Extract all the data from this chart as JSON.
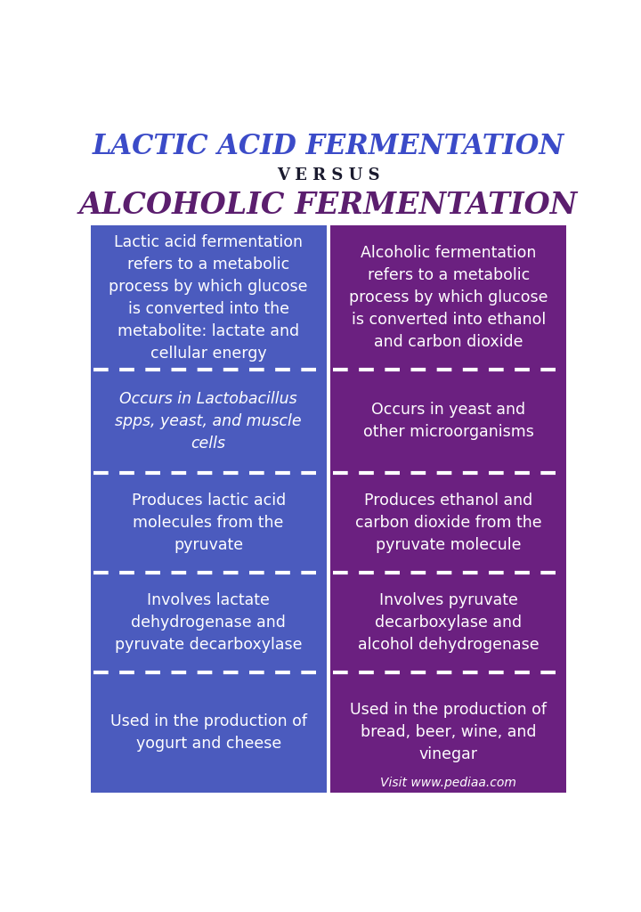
{
  "title1": "LACTIC ACID FERMENTATION",
  "versus": "V E R S U S",
  "title2": "ALCOHOLIC FERMENTATION",
  "title1_color": "#3B4BC8",
  "title2_color": "#5B1E6E",
  "versus_color": "#1a1a2e",
  "bg_color": "#FFFFFF",
  "left_bg": "#4B5BBE",
  "right_bg": "#6B2080",
  "text_color": "#FFFFFF",
  "divider_color": "#FFFFFF",
  "footer_text": "Visit www.pediaa.com",
  "rows": [
    {
      "left": "Lactic acid fermentation\nrefers to a metabolic\nprocess by which glucose\nis converted into the\nmetabolite: lactate and\ncellular energy",
      "right": "Alcoholic fermentation\nrefers to a metabolic\nprocess by which glucose\nis converted into ethanol\nand carbon dioxide"
    },
    {
      "left": "Occurs in Lactobacillus\nspps, yeast, and muscle\ncells",
      "right": "Occurs in yeast and\nother microorganisms"
    },
    {
      "left": "Produces lactic acid\nmolecules from the\npyruvate",
      "right": "Produces ethanol and\ncarbon dioxide from the\npyruvate molecule"
    },
    {
      "left": "Involves lactate\ndehydrogenase and\npyruvate decarboxylase",
      "right": "Involves pyruvate\ndecarboxylase and\nalcohol dehydrogenase"
    },
    {
      "left": "Used in the production of\nyogurt and cheese",
      "right": "Used in the production of\nbread, beer, wine, and\nvinegar"
    }
  ]
}
